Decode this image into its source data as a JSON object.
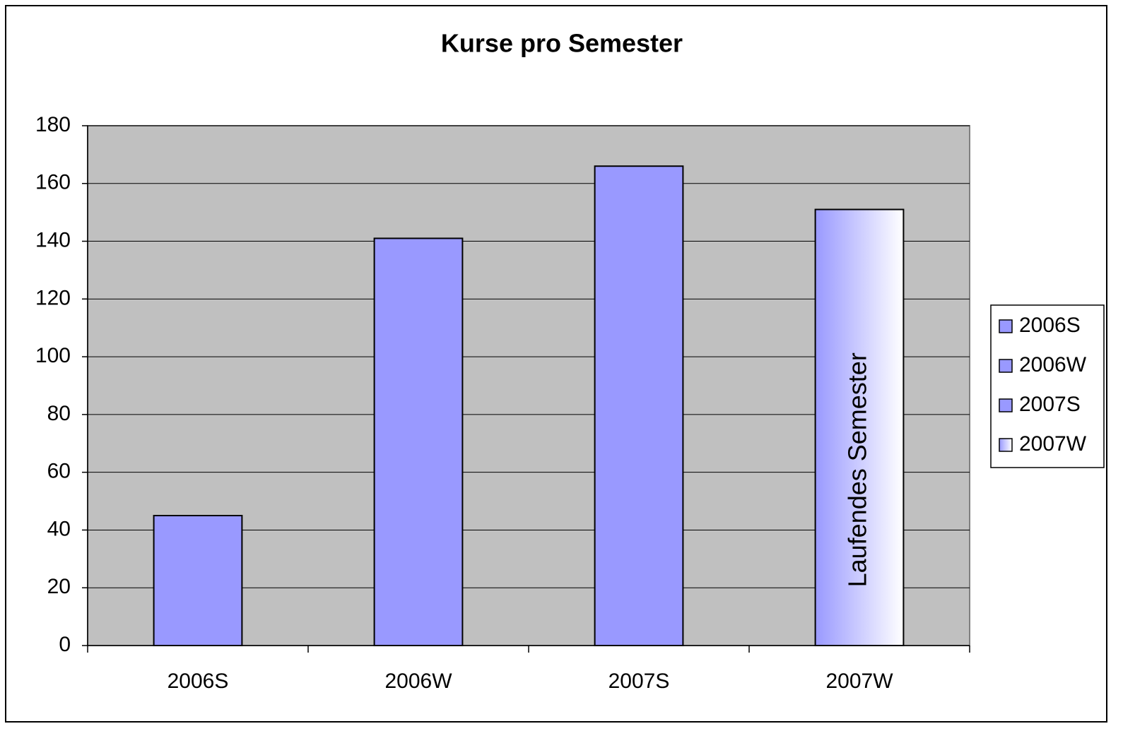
{
  "chart_data": {
    "type": "bar",
    "title": "Kurse pro Semester",
    "categories": [
      "2006S",
      "2006W",
      "2007S",
      "2007W"
    ],
    "values": [
      45,
      141,
      166,
      151
    ],
    "colors": [
      "#9999ff",
      "#9999ff",
      "#9999ff",
      {
        "from": "#9999ff",
        "to": "#ffffff"
      }
    ],
    "ylim": [
      0,
      180
    ],
    "yticks": [
      0,
      20,
      40,
      60,
      80,
      100,
      120,
      140,
      160,
      180
    ],
    "grid": true,
    "legend": "right",
    "annotations": [
      {
        "text": "Laufendes Semester",
        "category": "2007W"
      }
    ]
  }
}
